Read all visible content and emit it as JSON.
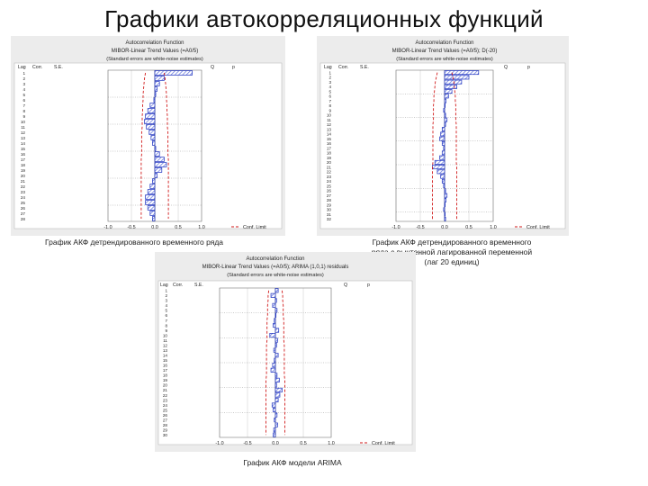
{
  "slide": {
    "title": "Графики автокорреляционных функций"
  },
  "colors": {
    "panel_bg": "#ececec",
    "plot_bg": "#ffffff",
    "bar_stroke": "#1a2fbf",
    "bar_fill": "#6f7fe0",
    "conf_limit": "#d11a1a",
    "text": "#1f1f1f",
    "grid": "#c8c8c8"
  },
  "captions": {
    "left": "График АКФ детрендированного временного ряда",
    "right": "График АКФ детрендированного временного ряда с вычтенной лагированной переменной (лаг 20 единиц)",
    "bottom": "График АКФ модели ARIMA"
  },
  "chart_data": [
    {
      "type": "bar",
      "orientation": "horizontal",
      "title": "Autocorrelation Function",
      "subtitle": "MIBOR-Linear Trend Values (=A0/5)",
      "note": "(Standard errors are white-noise estimates)",
      "column_headers": [
        "Lag",
        "Corr.",
        "S.E.",
        "Q",
        "p"
      ],
      "legend": "Conf. Limit",
      "xlim": [
        -1.0,
        1.0
      ],
      "xticks": [
        "-1.0",
        "-0.5",
        "0.0",
        "0.5",
        "1.0"
      ],
      "lags": [
        1,
        2,
        3,
        4,
        5,
        6,
        7,
        8,
        9,
        10,
        11,
        12,
        13,
        14,
        15,
        16,
        17,
        18,
        19,
        20,
        21,
        22,
        23,
        24,
        25,
        26,
        27,
        28
      ],
      "values": [
        0.8,
        0.2,
        0.1,
        0.05,
        0.02,
        -0.02,
        -0.1,
        -0.15,
        -0.2,
        -0.22,
        -0.18,
        -0.12,
        -0.08,
        -0.05,
        0.02,
        0.1,
        0.2,
        0.25,
        0.15,
        0.05,
        -0.05,
        -0.1,
        -0.15,
        -0.2,
        -0.2,
        -0.15,
        -0.1,
        -0.05
      ],
      "conf_limit": [
        0.2,
        0.22,
        0.23,
        0.24,
        0.25,
        0.25,
        0.26,
        0.26,
        0.27,
        0.27,
        0.27,
        0.28,
        0.28,
        0.28,
        0.28,
        0.28,
        0.29,
        0.29,
        0.29,
        0.29,
        0.29,
        0.29,
        0.29,
        0.29,
        0.29,
        0.29,
        0.29,
        0.29
      ]
    },
    {
      "type": "bar",
      "orientation": "horizontal",
      "title": "Autocorrelation Function",
      "subtitle": "MIBOR-Linear Trend Values (=A0/5); D(-20)",
      "note": "(Standard errors are white-noise estimates)",
      "column_headers": [
        "Lag",
        "Corr.",
        "S.E.",
        "Q",
        "p"
      ],
      "legend": "Conf. Limit",
      "xlim": [
        -1.0,
        1.0
      ],
      "xticks": [
        "-1.0",
        "-0.5",
        "0.0",
        "0.5",
        "1.0"
      ],
      "lags": [
        1,
        2,
        3,
        4,
        5,
        6,
        7,
        8,
        9,
        10,
        11,
        12,
        13,
        14,
        15,
        16,
        17,
        18,
        19,
        20,
        21,
        22,
        23,
        24,
        25,
        26,
        27,
        28,
        29,
        30,
        31,
        32
      ],
      "values": [
        0.7,
        0.5,
        0.35,
        0.25,
        0.15,
        0.08,
        0.03,
        0.0,
        -0.02,
        0.02,
        0.05,
        0.02,
        -0.05,
        -0.08,
        -0.1,
        -0.05,
        -0.02,
        -0.05,
        -0.1,
        -0.2,
        -0.25,
        -0.15,
        -0.08,
        -0.05,
        -0.02,
        0.02,
        0.05,
        0.03,
        0.0,
        -0.02,
        0.01,
        0.02
      ],
      "conf_limit": [
        0.15,
        0.17,
        0.19,
        0.2,
        0.21,
        0.22,
        0.22,
        0.23,
        0.23,
        0.23,
        0.23,
        0.24,
        0.24,
        0.24,
        0.24,
        0.24,
        0.24,
        0.24,
        0.24,
        0.24,
        0.25,
        0.25,
        0.25,
        0.25,
        0.25,
        0.25,
        0.25,
        0.25,
        0.25,
        0.25,
        0.25,
        0.25
      ]
    },
    {
      "type": "bar",
      "orientation": "horizontal",
      "title": "Autocorrelation Function",
      "subtitle": "MIBOR-Linear Trend Values (=A0/5); ARIMA (1,0,1) residuals",
      "note": "(Standard errors are white-noise estimates)",
      "column_headers": [
        "Lag",
        "Corr.",
        "S.E.",
        "Q",
        "p"
      ],
      "legend": "Conf. Limit",
      "xlim": [
        -1.0,
        1.0
      ],
      "xticks": [
        "-1.0",
        "-0.5",
        "0.0",
        "0.5",
        "1.0"
      ],
      "lags": [
        1,
        2,
        3,
        4,
        5,
        6,
        7,
        8,
        9,
        10,
        11,
        12,
        13,
        14,
        15,
        16,
        17,
        18,
        19,
        20,
        21,
        22,
        23,
        24,
        25,
        26,
        27,
        28,
        29,
        30
      ],
      "values": [
        0.05,
        -0.08,
        0.02,
        -0.05,
        0.03,
        0.01,
        -0.02,
        -0.04,
        0.06,
        -0.1,
        0.04,
        0.02,
        -0.03,
        0.05,
        -0.02,
        -0.05,
        -0.08,
        0.03,
        0.07,
        0.02,
        0.12,
        0.08,
        0.05,
        -0.06,
        -0.04,
        0.03,
        -0.02,
        0.04,
        -0.03,
        -0.04
      ],
      "conf_limit": [
        0.12,
        0.13,
        0.13,
        0.14,
        0.14,
        0.14,
        0.15,
        0.15,
        0.15,
        0.15,
        0.15,
        0.16,
        0.16,
        0.16,
        0.16,
        0.16,
        0.16,
        0.16,
        0.17,
        0.17,
        0.17,
        0.17,
        0.17,
        0.17,
        0.17,
        0.17,
        0.17,
        0.17,
        0.17,
        0.17
      ]
    }
  ]
}
